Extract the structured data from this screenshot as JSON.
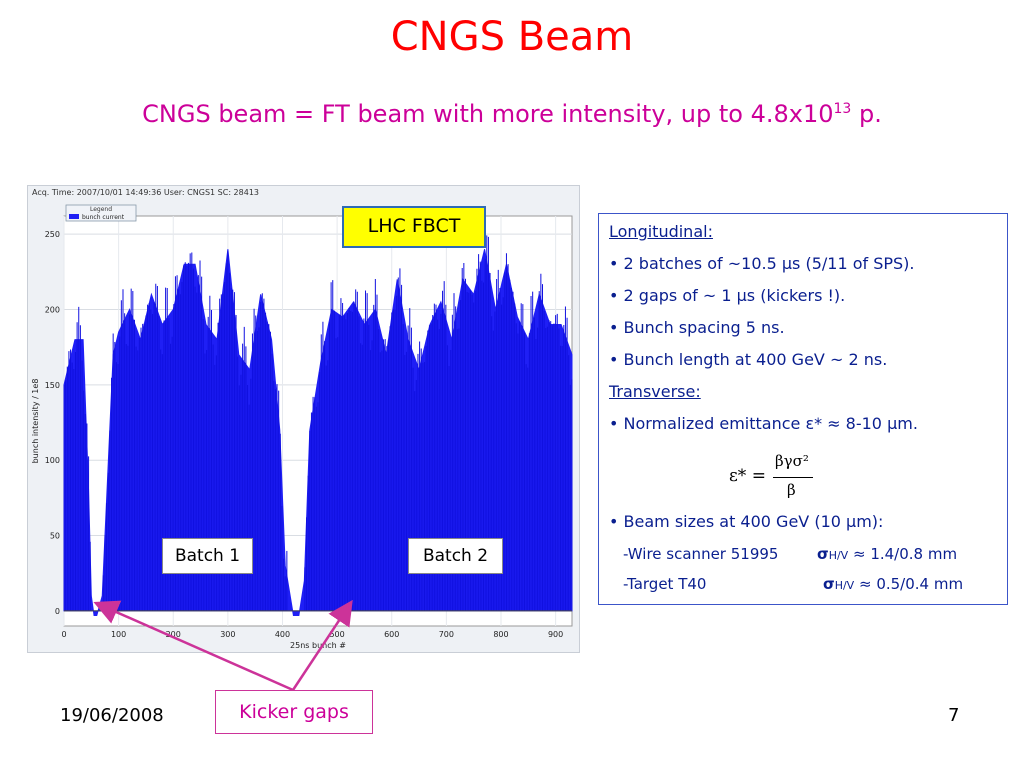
{
  "title": "CNGS Beam",
  "subtitle": {
    "text": "CNGS beam = FT beam with more intensity, up to 4.8x10",
    "exponent": "13",
    "suffix": " p."
  },
  "chart": {
    "header": "Acq. Time: 2007/10/01 14:49:36 User: CNGS1 SC: 28413",
    "legend_title": "Legend",
    "legend_entry": "bunch current",
    "ylabel": "bunch intensity / 1e8",
    "xlabel": "25ns bunch #",
    "yticks": [
      "0",
      "50",
      "100",
      "150",
      "200",
      "250"
    ],
    "xticks": [
      "0",
      "100",
      "200",
      "300",
      "400",
      "500",
      "600",
      "700",
      "800",
      "900"
    ],
    "bar_color": "#1f1ff5"
  },
  "chart_data": {
    "type": "area",
    "title": "",
    "xlabel": "25ns bunch #",
    "ylabel": "bunch intensity / 1e8",
    "xlim": [
      0,
      930
    ],
    "ylim": [
      -10,
      262
    ],
    "series": [
      {
        "name": "bunch current",
        "x": [
          0,
          20,
          35,
          45,
          50,
          55,
          60,
          70,
          80,
          90,
          100,
          120,
          140,
          160,
          180,
          200,
          220,
          240,
          260,
          280,
          300,
          320,
          340,
          360,
          380,
          395,
          405,
          420,
          430,
          440,
          450,
          470,
          490,
          510,
          530,
          550,
          570,
          590,
          610,
          630,
          650,
          670,
          690,
          710,
          730,
          750,
          770,
          790,
          810,
          830,
          850,
          870,
          890,
          910,
          930
        ],
        "values": [
          150,
          180,
          180,
          80,
          10,
          -3,
          -3,
          10,
          90,
          170,
          185,
          200,
          180,
          210,
          190,
          200,
          230,
          230,
          190,
          180,
          240,
          170,
          160,
          210,
          180,
          120,
          30,
          -3,
          -3,
          20,
          120,
          165,
          200,
          195,
          205,
          190,
          200,
          170,
          220,
          180,
          160,
          190,
          205,
          180,
          220,
          210,
          240,
          200,
          230,
          195,
          180,
          210,
          190,
          190,
          170
        ]
      }
    ],
    "annotations": [
      "LHC FBCT",
      "Batch 1",
      "Batch 2",
      "Kicker gaps"
    ]
  },
  "annotations": {
    "lhc_fbct": "LHC FBCT",
    "batch1": "Batch 1",
    "batch2": "Batch 2",
    "kicker_gaps": "Kicker gaps"
  },
  "info": {
    "longitudinal": "Longitudinal:",
    "l1": "• 2 batches of ~10.5 μs (5/11 of SPS).",
    "l2": "• 2 gaps of ~ 1 μs (kickers !).",
    "l3": "• Bunch spacing 5 ns.",
    "l4": "• Bunch length at 400 GeV ~ 2 ns.",
    "transverse": "Transverse:",
    "t1": "• Normalized emittance ε* ≈ 8-10 μm.",
    "formula_lhs": "ε* =",
    "formula_num": "βγσ²",
    "formula_den": "β",
    "t2": "• Beam sizes at 400 GeV (10 μm):",
    "wire_label": "-Wire scanner 51995",
    "wire_sym": "σ",
    "wire_sub": "H/V",
    "wire_val": "≈ 1.4/0.8 mm",
    "target_label": "-Target T40",
    "target_sym": "σ",
    "target_sub": "H/V",
    "target_val": "≈ 0.5/0.4 mm"
  },
  "footer": {
    "date": "19/06/2008",
    "page": "7"
  },
  "colors": {
    "title": "#ff0000",
    "subtitle": "#cc0099",
    "panel_text": "#0a1f8f",
    "panel_border": "#3c55c9",
    "lhc_bg": "#ffff00",
    "arrow": "#cc3399"
  }
}
